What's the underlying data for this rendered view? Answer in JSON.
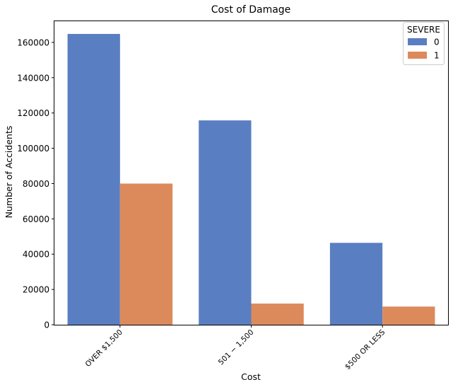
{
  "chart_data": {
    "type": "bar",
    "title": "Cost of Damage",
    "xlabel": "Cost",
    "ylabel": "Number of Accidents",
    "categories": [
      "OVER $1,500",
      "501 − 1,500",
      "$500 OR LESS"
    ],
    "series": [
      {
        "name": "0",
        "color": "#5a7ec2",
        "values": [
          164800,
          115800,
          46400
        ]
      },
      {
        "name": "1",
        "color": "#dc8a5c",
        "values": [
          80000,
          12000,
          10300
        ]
      }
    ],
    "ylim": [
      0,
      172000
    ],
    "yticks": [
      0,
      20000,
      40000,
      60000,
      80000,
      100000,
      120000,
      140000,
      160000
    ],
    "legend": {
      "title": "SEVERE",
      "position": "top-right"
    },
    "grid": false
  }
}
